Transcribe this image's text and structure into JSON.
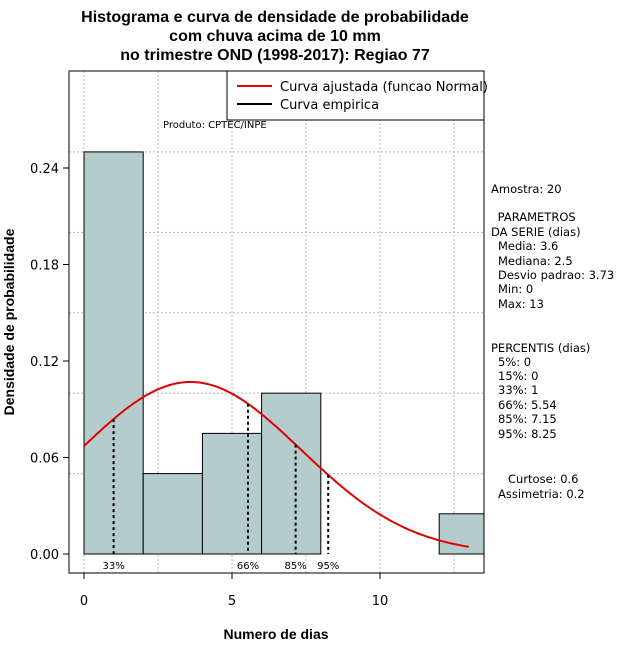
{
  "chart_data": {
    "type": "bar",
    "title_lines": [
      "Histograma e curva de densidade de probabilidade",
      "com chuva acima de 10 mm",
      "no trimestre OND (1998-2017): Regiao 77"
    ],
    "xlabel": "Numero de dias",
    "ylabel": "Densidade de probabilidade",
    "xlim": [
      -0.6,
      13.6
    ],
    "ylim": [
      0,
      0.3
    ],
    "x_ticks": [
      0,
      5,
      10
    ],
    "x_tick_labels": [
      "0",
      "5",
      "10"
    ],
    "y_ticks": [
      0.0,
      0.06,
      0.12,
      0.18,
      0.24
    ],
    "y_tick_labels": [
      "0.00",
      "0.06",
      "0.12",
      "0.18",
      "0.24"
    ],
    "grid": true,
    "bins": [
      {
        "x0": 0,
        "x1": 2,
        "density": 0.25
      },
      {
        "x0": 2,
        "x1": 4,
        "density": 0.05
      },
      {
        "x0": 4,
        "x1": 6,
        "density": 0.075
      },
      {
        "x0": 6,
        "x1": 8,
        "density": 0.1
      },
      {
        "x0": 8,
        "x1": 10,
        "density": 0.0
      },
      {
        "x0": 10,
        "x1": 12,
        "density": 0.0
      },
      {
        "x0": 12,
        "x1": 14,
        "density": 0.025
      }
    ],
    "bar_color": "#b5cccc",
    "normal_curve": {
      "mean": 3.6,
      "sd": 3.73,
      "x_range": [
        0,
        13
      ],
      "color": "#e00000"
    },
    "percentile_lines": [
      {
        "x": 1,
        "label": "33%"
      },
      {
        "x": 5.54,
        "label": "66%"
      },
      {
        "x": 7.15,
        "label": "85%"
      },
      {
        "x": 8.25,
        "label": "95%"
      }
    ],
    "legend": {
      "position": "top-right",
      "entries": [
        {
          "label": "Curva ajustada (funcao Normal)",
          "color": "#e00000"
        },
        {
          "label": "Curva empirica",
          "color": "#000000"
        }
      ]
    },
    "product_label": "Produto: CPTEC/INPE",
    "side_panel": {
      "amostra": "Amostra: 20",
      "param_header": [
        " PARAMETROS",
        "DA SERIE (dias)"
      ],
      "params": [
        "Media: 3.6",
        "Mediana: 2.5",
        "Desvio padrao: 3.73",
        "Min: 0",
        "Max: 13"
      ],
      "perc_header": "PERCENTIS (dias)",
      "percentis": [
        "5%: 0",
        "15%: 0",
        "33%: 1",
        "66%: 5.54",
        "85%: 7.15",
        "95%: 8.25"
      ],
      "curtose": "Curtose: 0.6",
      "assimetria": "Assimetria: 0.2"
    }
  }
}
